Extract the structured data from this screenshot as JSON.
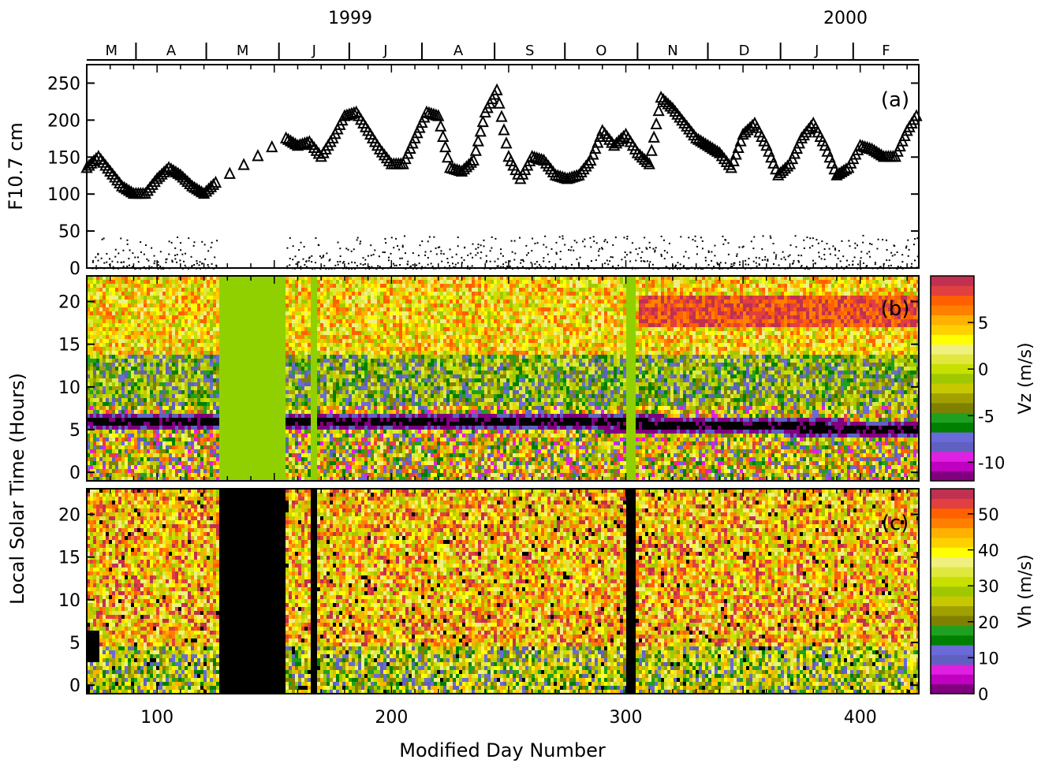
{
  "years": [
    "1999",
    "2000"
  ],
  "months": [
    "M",
    "A",
    "M",
    "J",
    "J",
    "A",
    "S",
    "O",
    "N",
    "D",
    "J",
    "F"
  ],
  "xlabel": "Modified Day Number",
  "xticks": [
    100,
    200,
    300,
    400
  ],
  "xlim": [
    70,
    425
  ],
  "panel_a": {
    "ylabel": "F10.7 cm",
    "tag": "(a)",
    "yticks": [
      0,
      50,
      100,
      150,
      200,
      250
    ],
    "ylim": [
      0,
      275
    ]
  },
  "panel_b": {
    "tag": "(b)",
    "yticks": [
      0,
      5,
      10,
      15,
      20
    ],
    "ylim": [
      -1,
      23
    ]
  },
  "panel_c": {
    "tag": "(c)",
    "yticks": [
      0,
      5,
      10,
      15,
      20
    ],
    "ylim": [
      -1,
      23
    ]
  },
  "shared_ylabel": "Local Solar Time (Hours)",
  "colorbar_vz": {
    "label": "Vz (m/s)",
    "ticks": [
      5,
      0,
      -5,
      -10
    ],
    "range": [
      -12,
      10
    ]
  },
  "colorbar_vh": {
    "label": "Vh (m/s)",
    "ticks": [
      50,
      40,
      30,
      20,
      10,
      0
    ],
    "range": [
      0,
      57
    ]
  },
  "colors": {
    "palette": [
      "#800080",
      "#c000c0",
      "#e020e0",
      "#6060c0",
      "#6a6ad8",
      "#008000",
      "#20a020",
      "#808000",
      "#a0a000",
      "#c8c800",
      "#a0c800",
      "#c8e000",
      "#e0e840",
      "#f0f080",
      "#ffff00",
      "#ffd000",
      "#ffb000",
      "#ff8000",
      "#ff6000",
      "#e04040",
      "#c03050"
    ],
    "nodata_vz": "#90d000",
    "nodata_vh": "#000000"
  },
  "chart_data": [
    {
      "type": "scatter",
      "title": "",
      "ylabel": "F10.7 cm",
      "xlabel": "Modified Day Number",
      "xlim": [
        70,
        425
      ],
      "ylim": [
        0,
        275
      ],
      "series": [
        {
          "marker": "triangle",
          "x": [
            70,
            75,
            80,
            85,
            90,
            95,
            100,
            105,
            110,
            115,
            120,
            125,
            155,
            160,
            165,
            170,
            175,
            180,
            185,
            190,
            195,
            200,
            205,
            210,
            215,
            220,
            225,
            230,
            235,
            240,
            245,
            250,
            255,
            260,
            265,
            270,
            275,
            280,
            285,
            290,
            295,
            300,
            305,
            310,
            315,
            320,
            325,
            330,
            335,
            340,
            345,
            350,
            355,
            360,
            365,
            370,
            375,
            380,
            385,
            390,
            395,
            400,
            405,
            410,
            415,
            420,
            425
          ],
          "y": [
            135,
            150,
            130,
            110,
            100,
            100,
            120,
            135,
            125,
            110,
            100,
            115,
            175,
            165,
            170,
            150,
            175,
            205,
            210,
            185,
            160,
            140,
            140,
            175,
            210,
            205,
            135,
            130,
            145,
            210,
            240,
            150,
            120,
            150,
            145,
            125,
            120,
            125,
            145,
            185,
            165,
            180,
            155,
            140,
            230,
            215,
            195,
            175,
            165,
            155,
            135,
            180,
            195,
            165,
            125,
            140,
            175,
            195,
            165,
            125,
            135,
            165,
            160,
            150,
            150,
            185,
            210
          ]
        },
        {
          "marker": "dot",
          "x": [
            70,
            80,
            90,
            95,
            100,
            110,
            115,
            120,
            160,
            170,
            180,
            190,
            200,
            210,
            220,
            230,
            240,
            250,
            260,
            270,
            280,
            290,
            300,
            310,
            320,
            330,
            340,
            350,
            360,
            370,
            380,
            390,
            400,
            410,
            420
          ],
          "y": [
            20,
            15,
            5,
            30,
            25,
            10,
            40,
            20,
            15,
            10,
            35,
            20,
            10,
            25,
            15,
            30,
            20,
            25,
            10,
            20,
            15,
            30,
            25,
            5,
            35,
            20,
            15,
            25,
            10,
            20,
            35,
            15,
            25,
            30,
            20
          ]
        }
      ]
    },
    {
      "type": "heatmap",
      "ylabel": "Local Solar Time (Hours)",
      "colorbar_label": "Vz (m/s)",
      "x_range": [
        70,
        425
      ],
      "y_range": [
        0,
        24
      ],
      "data_gaps_days": [
        [
          126,
          154
        ],
        [
          165,
          168
        ],
        [
          300,
          304
        ]
      ],
      "feature": "dark negative Vz band near 6 LT, descending to ~5 LT by day 340; red positive band near 19 LT after day 305"
    },
    {
      "type": "heatmap",
      "ylabel": "Local Solar Time (Hours)",
      "colorbar_label": "Vh (m/s)",
      "x_range": [
        70,
        425
      ],
      "y_range": [
        0,
        24
      ],
      "data_gaps_days": [
        [
          126,
          154
        ],
        [
          165,
          168
        ],
        [
          300,
          304
        ]
      ]
    }
  ]
}
